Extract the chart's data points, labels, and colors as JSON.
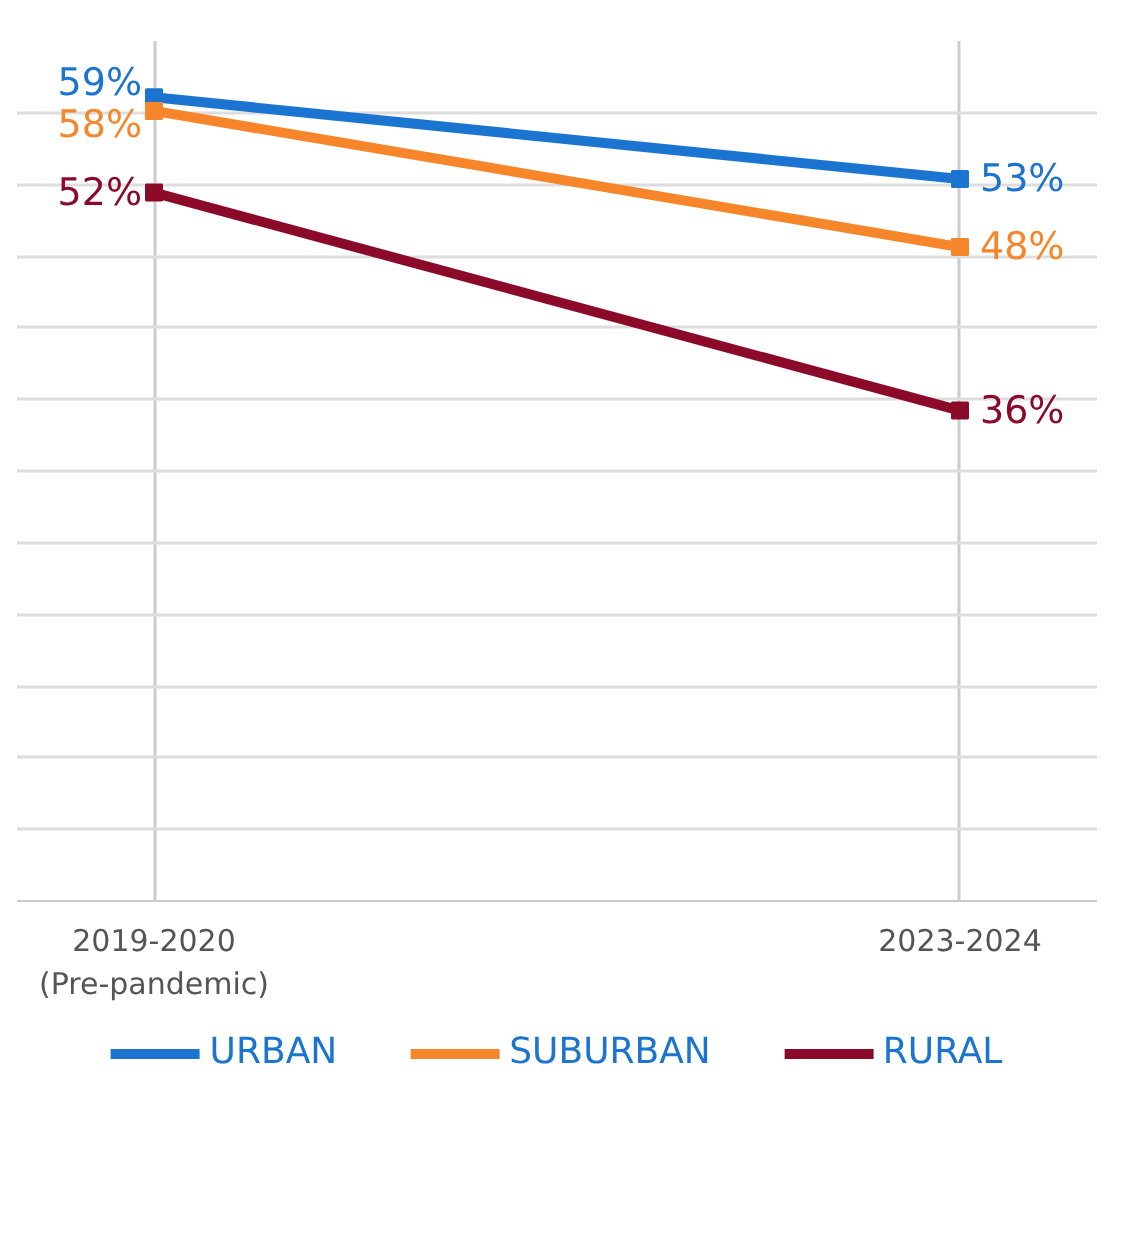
{
  "chart_data": {
    "type": "line",
    "categories": [
      "2019-2020\n(Pre-pandemic)",
      "2023-2024"
    ],
    "series": [
      {
        "name": "URBAN",
        "color": "#1b75d0",
        "values": [
          59,
          53
        ],
        "value_labels": [
          "59%",
          "53%"
        ]
      },
      {
        "name": "SUBURBAN",
        "color": "#f7862b",
        "values": [
          58,
          48
        ],
        "value_labels": [
          "58%",
          "48%"
        ]
      },
      {
        "name": "RURAL",
        "color": "#8b0a2a",
        "values": [
          52,
          36
        ],
        "value_labels": [
          "52%",
          "36%"
        ]
      }
    ],
    "grid": true,
    "legend": "bottom",
    "marker": "square",
    "line_style": "solid",
    "tick_labels": "x"
  }
}
